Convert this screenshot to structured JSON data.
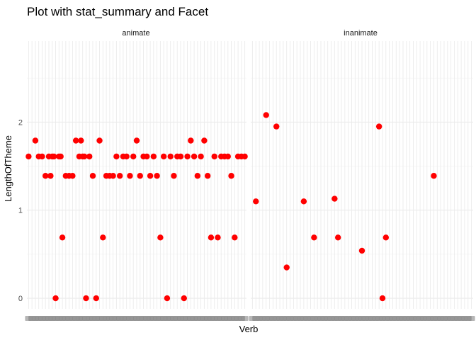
{
  "chart_data": {
    "type": "scatter",
    "title": "Plot with stat_summary and Facet",
    "xlabel": "Verb",
    "ylabel": "LengthOfTheme",
    "ylim": [
      -0.12,
      2.92
    ],
    "yticks": [
      0,
      1,
      2
    ],
    "grid": true,
    "point_color": "#ff0000",
    "x_tick_labels_overplotted": true,
    "panels": [
      {
        "name": "animate",
        "n_categories": 65,
        "points": [
          {
            "x": 1,
            "y": 1.61
          },
          {
            "x": 3,
            "y": 1.79
          },
          {
            "x": 4,
            "y": 1.61
          },
          {
            "x": 5,
            "y": 1.61
          },
          {
            "x": 6,
            "y": 1.39
          },
          {
            "x": 7,
            "y": 1.61
          },
          {
            "x": 7.5,
            "y": 1.39
          },
          {
            "x": 8,
            "y": 1.61
          },
          {
            "x": 8.5,
            "y": 1.61
          },
          {
            "x": 9,
            "y": 0.0
          },
          {
            "x": 10,
            "y": 1.61
          },
          {
            "x": 10.5,
            "y": 1.61
          },
          {
            "x": 11,
            "y": 0.69
          },
          {
            "x": 12,
            "y": 1.39
          },
          {
            "x": 13,
            "y": 1.39
          },
          {
            "x": 14,
            "y": 1.39
          },
          {
            "x": 15,
            "y": 1.79
          },
          {
            "x": 16,
            "y": 1.61
          },
          {
            "x": 16.5,
            "y": 1.79
          },
          {
            "x": 17,
            "y": 1.61
          },
          {
            "x": 17.5,
            "y": 1.61
          },
          {
            "x": 18,
            "y": 0.0
          },
          {
            "x": 19,
            "y": 1.61
          },
          {
            "x": 20,
            "y": 1.39
          },
          {
            "x": 21,
            "y": 0.0
          },
          {
            "x": 22,
            "y": 1.79
          },
          {
            "x": 23,
            "y": 0.69
          },
          {
            "x": 24,
            "y": 1.39
          },
          {
            "x": 25,
            "y": 1.39
          },
          {
            "x": 26,
            "y": 1.39
          },
          {
            "x": 27,
            "y": 1.61
          },
          {
            "x": 28,
            "y": 1.39
          },
          {
            "x": 29,
            "y": 1.61
          },
          {
            "x": 30,
            "y": 1.61
          },
          {
            "x": 31,
            "y": 1.39
          },
          {
            "x": 32,
            "y": 1.61
          },
          {
            "x": 33,
            "y": 1.79
          },
          {
            "x": 34,
            "y": 1.39
          },
          {
            "x": 35,
            "y": 1.61
          },
          {
            "x": 36,
            "y": 1.61
          },
          {
            "x": 37,
            "y": 1.39
          },
          {
            "x": 38,
            "y": 1.61
          },
          {
            "x": 39,
            "y": 1.39
          },
          {
            "x": 40,
            "y": 0.69
          },
          {
            "x": 41,
            "y": 1.61
          },
          {
            "x": 42,
            "y": 0.0
          },
          {
            "x": 43,
            "y": 1.61
          },
          {
            "x": 44,
            "y": 1.39
          },
          {
            "x": 45,
            "y": 1.61
          },
          {
            "x": 46,
            "y": 1.61
          },
          {
            "x": 47,
            "y": 0.0
          },
          {
            "x": 48,
            "y": 1.61
          },
          {
            "x": 49,
            "y": 1.79
          },
          {
            "x": 50,
            "y": 1.61
          },
          {
            "x": 51,
            "y": 1.39
          },
          {
            "x": 52,
            "y": 1.61
          },
          {
            "x": 53,
            "y": 1.79
          },
          {
            "x": 54,
            "y": 1.39
          },
          {
            "x": 55,
            "y": 0.69
          },
          {
            "x": 56,
            "y": 1.61
          },
          {
            "x": 57,
            "y": 0.69
          },
          {
            "x": 58,
            "y": 1.61
          },
          {
            "x": 59,
            "y": 1.61
          },
          {
            "x": 60,
            "y": 1.61
          },
          {
            "x": 61,
            "y": 1.39
          },
          {
            "x": 62,
            "y": 0.69
          },
          {
            "x": 63,
            "y": 1.61
          },
          {
            "x": 64,
            "y": 1.61
          },
          {
            "x": 65,
            "y": 1.61
          }
        ]
      },
      {
        "name": "inanimate",
        "n_categories": 65,
        "points": [
          {
            "x": 2,
            "y": 1.1
          },
          {
            "x": 5,
            "y": 2.08
          },
          {
            "x": 8,
            "y": 1.95
          },
          {
            "x": 11,
            "y": 0.35
          },
          {
            "x": 16,
            "y": 1.1
          },
          {
            "x": 19,
            "y": 0.69
          },
          {
            "x": 25,
            "y": 1.13
          },
          {
            "x": 26,
            "y": 0.69
          },
          {
            "x": 33,
            "y": 0.54
          },
          {
            "x": 38,
            "y": 1.95
          },
          {
            "x": 39,
            "y": 0.0
          },
          {
            "x": 40,
            "y": 0.69
          },
          {
            "x": 54,
            "y": 1.39
          }
        ]
      }
    ]
  }
}
